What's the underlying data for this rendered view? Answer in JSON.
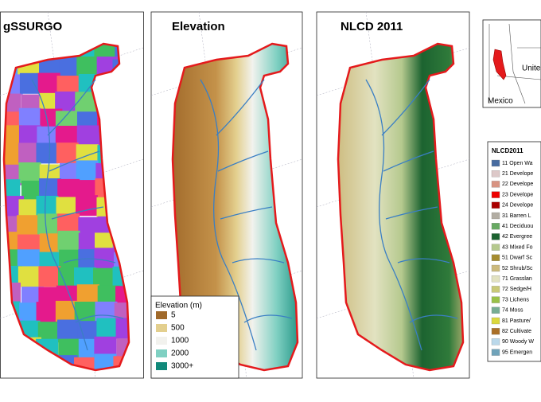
{
  "panels": [
    {
      "title": "gSSURGO"
    },
    {
      "title": "Elevation"
    },
    {
      "title": "NLCD 2011"
    }
  ],
  "inset": {
    "labels": [
      "Unite",
      "Mexico"
    ]
  },
  "elevation_legend": {
    "title": "Elevation (m)",
    "items": [
      {
        "label": "5",
        "color": "#a0692a"
      },
      {
        "label": "500",
        "color": "#e3cf8e"
      },
      {
        "label": "1000",
        "color": "#f2f2ee"
      },
      {
        "label": "2000",
        "color": "#7fd0c2"
      },
      {
        "label": "3000+",
        "color": "#11897a"
      }
    ]
  },
  "nlcd_legend": {
    "title": "NLCD2011",
    "items": [
      {
        "label": "11 Open Wa",
        "color": "#476ba0"
      },
      {
        "label": "21 Develope",
        "color": "#ddc9c9"
      },
      {
        "label": "22 Develope",
        "color": "#d89382"
      },
      {
        "label": "23 Develope",
        "color": "#ed0000"
      },
      {
        "label": "24 Develope",
        "color": "#aa0000"
      },
      {
        "label": "31 Barren L",
        "color": "#b2ada3"
      },
      {
        "label": "41 Deciduou",
        "color": "#68aa63"
      },
      {
        "label": "42 Evergree",
        "color": "#1c6330"
      },
      {
        "label": "43 Mixed Fo",
        "color": "#b5c98e"
      },
      {
        "label": "51 Dwarf Sc",
        "color": "#a58c30"
      },
      {
        "label": "52 Shrub/Sc",
        "color": "#ccba7c"
      },
      {
        "label": "71 Grasslan",
        "color": "#e2e2c1"
      },
      {
        "label": "72 Sedge/H",
        "color": "#c9c977"
      },
      {
        "label": "73 Lichens",
        "color": "#99c147"
      },
      {
        "label": "74 Moss",
        "color": "#77ad93"
      },
      {
        "label": "81 Pasture/",
        "color": "#dbd83d"
      },
      {
        "label": "82 Cultivate",
        "color": "#aa7028"
      },
      {
        "label": "90 Woody W",
        "color": "#bad8ea"
      },
      {
        "label": "95 Emergen",
        "color": "#70a3ba"
      }
    ]
  }
}
